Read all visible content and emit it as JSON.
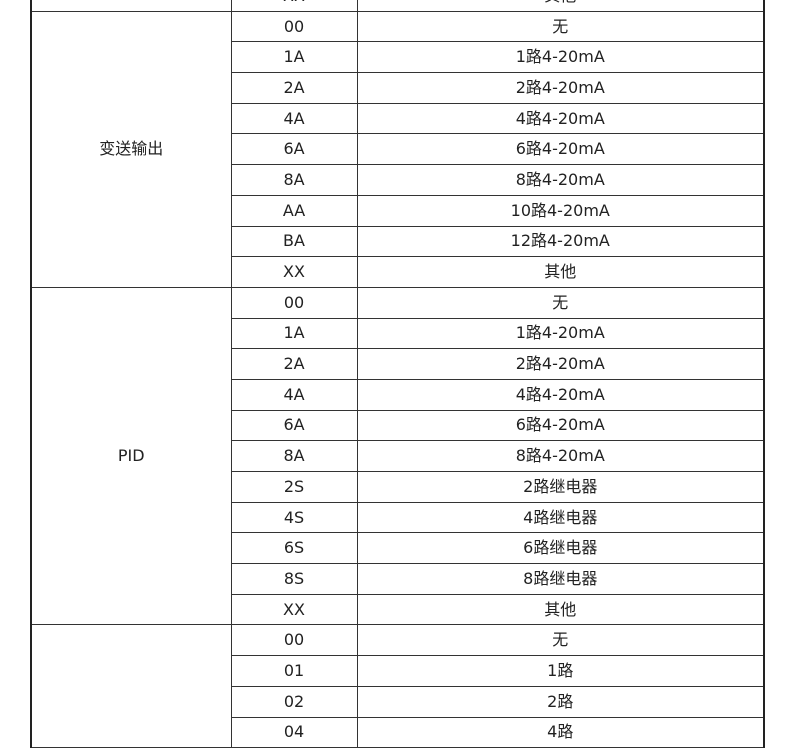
{
  "top_row": {
    "code": "XX",
    "desc": "其他"
  },
  "sections": [
    {
      "label": "变送输出",
      "rows": [
        {
          "code": "00",
          "desc": "无"
        },
        {
          "code": "1A",
          "desc": "1路4-20mA"
        },
        {
          "code": "2A",
          "desc": "2路4-20mA"
        },
        {
          "code": "4A",
          "desc": "4路4-20mA"
        },
        {
          "code": "6A",
          "desc": "6路4-20mA"
        },
        {
          "code": "8A",
          "desc": "8路4-20mA"
        },
        {
          "code": "AA",
          "desc": "10路4-20mA"
        },
        {
          "code": "BA",
          "desc": "12路4-20mA"
        },
        {
          "code": "XX",
          "desc": "其他"
        }
      ]
    },
    {
      "label": "PID",
      "rows": [
        {
          "code": "00",
          "desc": "无"
        },
        {
          "code": "1A",
          "desc": "1路4-20mA"
        },
        {
          "code": "2A",
          "desc": "2路4-20mA"
        },
        {
          "code": "4A",
          "desc": "4路4-20mA"
        },
        {
          "code": "6A",
          "desc": "6路4-20mA"
        },
        {
          "code": "8A",
          "desc": "8路4-20mA"
        },
        {
          "code": "2S",
          "desc": "2路继电器"
        },
        {
          "code": "4S",
          "desc": "4路继电器"
        },
        {
          "code": "6S",
          "desc": "6路继电器"
        },
        {
          "code": "8S",
          "desc": "8路继电器"
        },
        {
          "code": "XX",
          "desc": "其他"
        }
      ]
    },
    {
      "label": "",
      "rows": [
        {
          "code": "00",
          "desc": "无"
        },
        {
          "code": "01",
          "desc": "1路"
        },
        {
          "code": "02",
          "desc": "2路"
        },
        {
          "code": "04",
          "desc": "4路"
        }
      ]
    }
  ]
}
